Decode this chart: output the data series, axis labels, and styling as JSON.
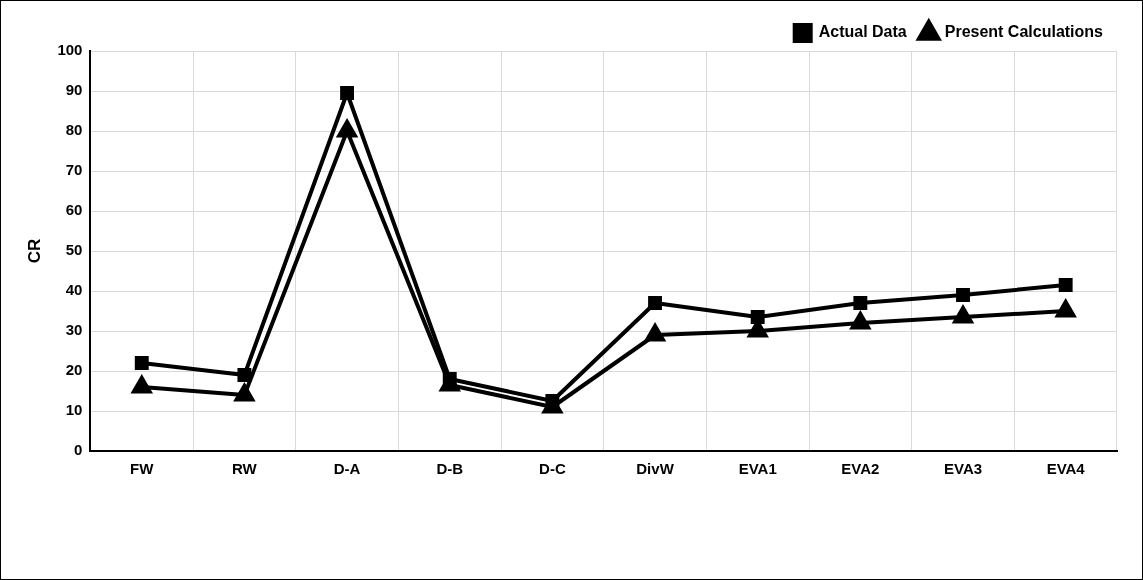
{
  "chart_data": {
    "type": "line",
    "ylabel": "CR",
    "categories": [
      "FW",
      "RW",
      "D-A",
      "D-B",
      "D-C",
      "DivW",
      "EVA1",
      "EVA2",
      "EVA3",
      "EVA4"
    ],
    "series": [
      {
        "name": "Present Calculations",
        "color": "#000000",
        "marker": "triangle",
        "values": [
          16,
          14,
          80,
          16.5,
          11,
          29,
          30,
          32,
          33.5,
          35
        ]
      },
      {
        "name": "Actual Data",
        "color": "#000000",
        "marker": "square",
        "values": [
          22,
          19,
          89.5,
          18,
          12.5,
          37,
          33.5,
          37,
          39,
          41.5
        ]
      }
    ],
    "ylim": [
      0,
      100
    ],
    "yticks": [
      0,
      10,
      20,
      30,
      40,
      50,
      60,
      70,
      80,
      90,
      100
    ],
    "grid": true,
    "legend": "top right",
    "line_style": "solid"
  }
}
